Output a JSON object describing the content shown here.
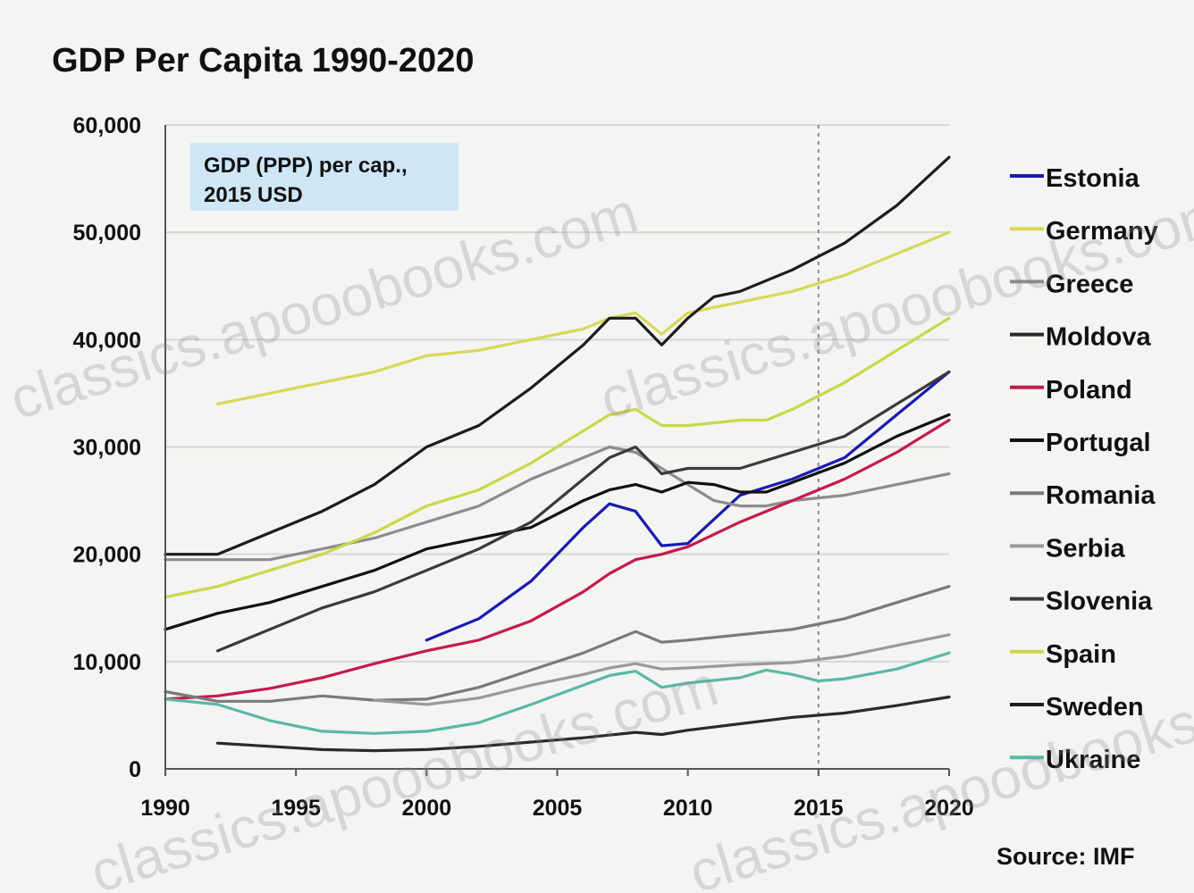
{
  "chart_data": {
    "type": "line",
    "title": "GDP Per Capita 1990-2020",
    "annotation": [
      "GDP (PPP) per cap.,",
      "2015 USD"
    ],
    "source": "Source: IMF",
    "watermark": "classics.apooobooks.com",
    "xlabel": "",
    "ylabel": "",
    "xlim": [
      1990,
      2020
    ],
    "ylim": [
      0,
      60000
    ],
    "x_ticks": [
      1990,
      1995,
      2000,
      2005,
      2010,
      2015,
      2020
    ],
    "y_ticks": [
      0,
      10000,
      20000,
      30000,
      40000,
      50000,
      60000
    ],
    "x_tick_labels": [
      "1990",
      "1995",
      "2000",
      "2005",
      "2010",
      "2015",
      "2020"
    ],
    "y_tick_labels": [
      "0",
      "10,000",
      "20,000",
      "30,000",
      "40,000",
      "50,000",
      "60,000"
    ],
    "reference_line_x": 2015,
    "grid": true,
    "legend_position": "right",
    "series": [
      {
        "name": "Estonia",
        "color": "#1a1ab0",
        "x": [
          2000,
          2002,
          2004,
          2005,
          2006,
          2007,
          2008,
          2009,
          2010,
          2012,
          2014,
          2016,
          2018,
          2020
        ],
        "y": [
          12000,
          14000,
          17500,
          20000,
          22500,
          24700,
          24000,
          20800,
          21000,
          25500,
          27000,
          29000,
          33000,
          37000
        ]
      },
      {
        "name": "Germany",
        "color": "#d8d858",
        "x": [
          1992,
          1994,
          1996,
          1998,
          2000,
          2002,
          2004,
          2006,
          2007,
          2008,
          2009,
          2010,
          2012,
          2014,
          2016,
          2018,
          2020
        ],
        "y": [
          34000,
          35000,
          36000,
          37000,
          38500,
          39000,
          40000,
          41000,
          42000,
          42500,
          40500,
          42500,
          43500,
          44500,
          46000,
          48000,
          50000
        ]
      },
      {
        "name": "Greece",
        "color": "#8c8c8c",
        "x": [
          1990,
          1992,
          1994,
          1996,
          1998,
          2000,
          2002,
          2004,
          2006,
          2007,
          2008,
          2009,
          2010,
          2011,
          2012,
          2013,
          2014,
          2016,
          2018,
          2020
        ],
        "y": [
          19500,
          19500,
          19500,
          20500,
          21500,
          23000,
          24500,
          27000,
          29000,
          30000,
          29500,
          28000,
          26500,
          25000,
          24500,
          24500,
          25000,
          25500,
          26500,
          27500
        ]
      },
      {
        "name": "Moldova",
        "color": "#2a2a2a",
        "x": [
          1992,
          1994,
          1996,
          1998,
          2000,
          2002,
          2004,
          2006,
          2008,
          2009,
          2010,
          2012,
          2014,
          2016,
          2018,
          2020
        ],
        "y": [
          2400,
          2100,
          1800,
          1700,
          1800,
          2100,
          2500,
          2900,
          3400,
          3200,
          3600,
          4200,
          4800,
          5200,
          5900,
          6700
        ]
      },
      {
        "name": "Poland",
        "color": "#c41a4e",
        "x": [
          1990,
          1992,
          1994,
          1996,
          1998,
          2000,
          2002,
          2004,
          2006,
          2007,
          2008,
          2009,
          2010,
          2012,
          2014,
          2016,
          2018,
          2020
        ],
        "y": [
          6500,
          6800,
          7500,
          8500,
          9800,
          11000,
          12000,
          13800,
          16500,
          18200,
          19500,
          20000,
          20700,
          23000,
          25000,
          27000,
          29500,
          32500
        ]
      },
      {
        "name": "Portugal",
        "color": "#111111",
        "x": [
          1990,
          1992,
          1994,
          1996,
          1998,
          2000,
          2002,
          2004,
          2006,
          2007,
          2008,
          2009,
          2010,
          2011,
          2012,
          2013,
          2014,
          2016,
          2018,
          2020
        ],
        "y": [
          13000,
          14500,
          15500,
          17000,
          18500,
          20500,
          21500,
          22500,
          25000,
          26000,
          26500,
          25800,
          26700,
          26500,
          25800,
          25800,
          26700,
          28500,
          31000,
          33000
        ]
      },
      {
        "name": "Romania",
        "color": "#7a7a7a",
        "x": [
          1990,
          1992,
          1994,
          1996,
          1998,
          2000,
          2002,
          2004,
          2006,
          2007,
          2008,
          2009,
          2010,
          2012,
          2014,
          2016,
          2018,
          2020
        ],
        "y": [
          7200,
          6300,
          6300,
          6800,
          6400,
          6500,
          7600,
          9200,
          10800,
          11800,
          12800,
          11800,
          12000,
          12500,
          13000,
          14000,
          15500,
          17000
        ]
      },
      {
        "name": "Serbia",
        "color": "#9a9a9a",
        "x": [
          1998,
          2000,
          2002,
          2004,
          2006,
          2007,
          2008,
          2009,
          2010,
          2012,
          2014,
          2016,
          2018,
          2020
        ],
        "y": [
          6400,
          6000,
          6600,
          7800,
          8800,
          9400,
          9800,
          9300,
          9400,
          9700,
          9900,
          10500,
          11500,
          12500
        ]
      },
      {
        "name": "Slovenia",
        "color": "#3a3a3a",
        "x": [
          1992,
          1994,
          1996,
          1998,
          2000,
          2002,
          2004,
          2006,
          2007,
          2008,
          2009,
          2010,
          2012,
          2014,
          2016,
          2018,
          2020
        ],
        "y": [
          11000,
          13000,
          15000,
          16500,
          18500,
          20500,
          23000,
          27000,
          29000,
          30000,
          27500,
          28000,
          28000,
          29500,
          31000,
          34000,
          37000
        ]
      },
      {
        "name": "Spain",
        "color": "#c9d84a",
        "x": [
          1990,
          1992,
          1994,
          1996,
          1998,
          2000,
          2002,
          2004,
          2006,
          2007,
          2008,
          2009,
          2010,
          2012,
          2013,
          2014,
          2016,
          2018,
          2020
        ],
        "y": [
          16000,
          17000,
          18500,
          20000,
          22000,
          24500,
          26000,
          28500,
          31500,
          33000,
          33500,
          32000,
          32000,
          32500,
          32500,
          33500,
          36000,
          39000,
          42000
        ]
      },
      {
        "name": "Sweden",
        "color": "#1c1c1c",
        "x": [
          1990,
          1992,
          1994,
          1996,
          1998,
          2000,
          2002,
          2004,
          2006,
          2007,
          2008,
          2009,
          2010,
          2011,
          2012,
          2014,
          2016,
          2018,
          2020
        ],
        "y": [
          20000,
          20000,
          22000,
          24000,
          26500,
          30000,
          32000,
          35500,
          39500,
          42000,
          42000,
          39500,
          42000,
          44000,
          44500,
          46500,
          49000,
          52500,
          57000
        ]
      },
      {
        "name": "Ukraine",
        "color": "#5ab8a8",
        "x": [
          1990,
          1992,
          1994,
          1996,
          1998,
          2000,
          2002,
          2004,
          2006,
          2007,
          2008,
          2009,
          2010,
          2012,
          2013,
          2014,
          2015,
          2016,
          2018,
          2020
        ],
        "y": [
          6500,
          6000,
          4500,
          3500,
          3300,
          3500,
          4300,
          6000,
          7800,
          8700,
          9100,
          7600,
          8000,
          8500,
          9200,
          8800,
          8200,
          8400,
          9300,
          10800
        ]
      }
    ]
  }
}
